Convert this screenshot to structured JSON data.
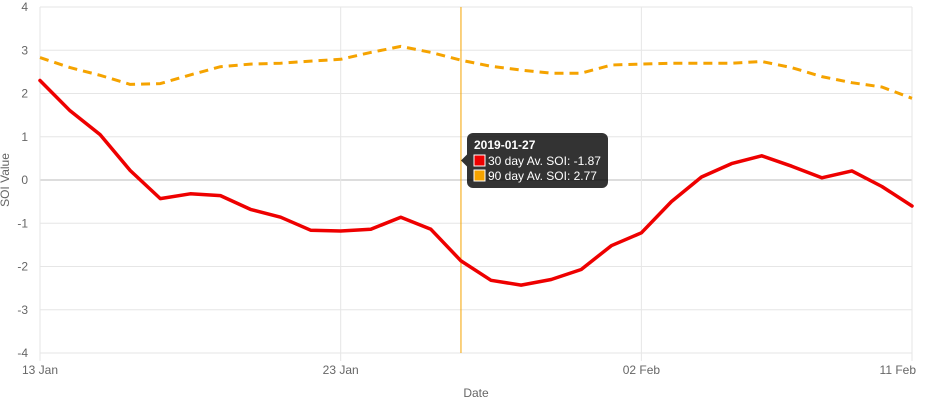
{
  "chart_data": {
    "type": "line",
    "title": "",
    "xlabel": "Date",
    "ylabel": "SOI Value",
    "ylim": [
      -4,
      4
    ],
    "yticks": [
      -4,
      -3,
      -2,
      -1,
      0,
      1,
      2,
      3,
      4
    ],
    "xlim": [
      "2019-01-13",
      "2019-02-11"
    ],
    "xticks": [
      {
        "date": "2019-01-13",
        "label": "13 Jan"
      },
      {
        "date": "2019-01-23",
        "label": "23 Jan"
      },
      {
        "date": "2019-02-02",
        "label": "02 Feb"
      },
      {
        "date": "2019-02-11",
        "label": "11 Feb"
      }
    ],
    "grid": true,
    "legend": "none",
    "x": [
      "2019-01-13",
      "2019-01-14",
      "2019-01-15",
      "2019-01-16",
      "2019-01-17",
      "2019-01-18",
      "2019-01-19",
      "2019-01-20",
      "2019-01-21",
      "2019-01-22",
      "2019-01-23",
      "2019-01-24",
      "2019-01-25",
      "2019-01-26",
      "2019-01-27",
      "2019-01-28",
      "2019-01-29",
      "2019-01-30",
      "2019-01-31",
      "2019-02-01",
      "2019-02-02",
      "2019-02-03",
      "2019-02-04",
      "2019-02-05",
      "2019-02-06",
      "2019-02-07",
      "2019-02-08",
      "2019-02-09",
      "2019-02-10",
      "2019-02-11"
    ],
    "series": [
      {
        "name": "30 day Av. SOI",
        "color": "#ee0000",
        "dash": false,
        "values": [
          2.3,
          1.6,
          1.05,
          0.22,
          -0.43,
          -0.32,
          -0.36,
          -0.68,
          -0.86,
          -1.16,
          -1.18,
          -1.14,
          -0.86,
          -1.14,
          -1.87,
          -2.32,
          -2.43,
          -2.3,
          -2.07,
          -1.52,
          -1.22,
          -0.5,
          0.07,
          0.38,
          0.56,
          0.32,
          0.05,
          0.21,
          -0.15,
          -0.6
        ]
      },
      {
        "name": "90 day Av. SOI",
        "color": "#f5a300",
        "dash": true,
        "values": [
          2.83,
          2.6,
          2.42,
          2.21,
          2.23,
          2.43,
          2.62,
          2.68,
          2.7,
          2.75,
          2.79,
          2.95,
          3.09,
          2.95,
          2.77,
          2.63,
          2.54,
          2.47,
          2.47,
          2.66,
          2.68,
          2.7,
          2.7,
          2.7,
          2.74,
          2.6,
          2.39,
          2.25,
          2.15,
          1.89
        ]
      }
    ],
    "crosshair": {
      "date": "2019-01-27",
      "color": "#f5a300"
    },
    "tooltip": {
      "title": "2019-01-27",
      "lines": [
        "30 day Av. SOI: -1.87",
        "90 day Av. SOI: 2.77"
      ],
      "swatch_colors": [
        "#ee0000",
        "#f5a300"
      ]
    }
  }
}
